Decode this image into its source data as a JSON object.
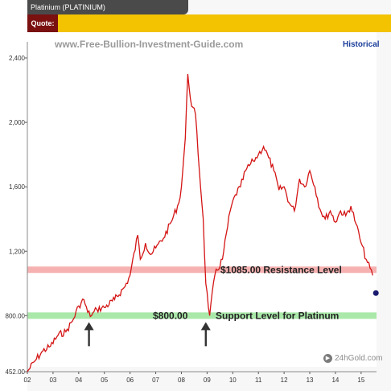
{
  "header": {
    "title": "Platinium (PLATINIUM)",
    "quote_label": "Quote:"
  },
  "watermark": "www.Free-Bullion-Investment-Guide.com",
  "historical_link": "Historical",
  "logo": "24hGold.com",
  "colors": {
    "line": "#d41414",
    "resistance": "#f4a3a3",
    "support": "#9ae49a",
    "quote_bar": "#f3c200",
    "quote_label_bg": "#7a1010"
  },
  "chart_data": {
    "type": "line",
    "title": "",
    "xlabel": "",
    "ylabel": "",
    "xlim": [
      2002,
      2015.6
    ],
    "ylim": [
      452,
      2450
    ],
    "x_ticks": [
      "02",
      "03",
      "04",
      "05",
      "06",
      "07",
      "08",
      "09",
      "10",
      "11",
      "12",
      "13",
      "14",
      "15"
    ],
    "y_ticks": [
      "452.00",
      "800.00",
      "1,200",
      "1,600",
      "2,000",
      "2,400"
    ],
    "y_tick_values": [
      452,
      800,
      1200,
      1600,
      2000,
      2400
    ],
    "grid": false,
    "series": [
      {
        "x": [
          2002.0,
          2002.3,
          2002.6,
          2002.9,
          2003.2,
          2003.5,
          2003.8,
          2004.0,
          2004.2,
          2004.35,
          2004.5,
          2004.7,
          2005.0,
          2005.4,
          2005.8,
          2006.0,
          2006.3,
          2006.4,
          2006.6,
          2006.8,
          2007.0,
          2007.3,
          2007.6,
          2007.9,
          2008.0,
          2008.15,
          2008.25,
          2008.4,
          2008.55,
          2008.7,
          2008.85,
          2008.95,
          2009.1,
          2009.3,
          2009.6,
          2009.9,
          2010.1,
          2010.3,
          2010.5,
          2010.8,
          2011.0,
          2011.2,
          2011.4,
          2011.6,
          2011.8,
          2012.0,
          2012.2,
          2012.4,
          2012.6,
          2012.8,
          2013.0,
          2013.2,
          2013.4,
          2013.6,
          2013.8,
          2014.0,
          2014.2,
          2014.4,
          2014.6,
          2014.8,
          2015.0,
          2015.2,
          2015.45
        ],
        "y": [
          452,
          520,
          580,
          610,
          680,
          700,
          780,
          860,
          900,
          820,
          800,
          840,
          850,
          900,
          980,
          1050,
          1300,
          1150,
          1250,
          1180,
          1220,
          1280,
          1380,
          1500,
          1600,
          1900,
          2300,
          2100,
          2050,
          1700,
          1400,
          1000,
          800,
          1050,
          1150,
          1450,
          1550,
          1600,
          1700,
          1760,
          1800,
          1850,
          1780,
          1700,
          1580,
          1600,
          1500,
          1450,
          1650,
          1600,
          1700,
          1600,
          1460,
          1400,
          1450,
          1380,
          1450,
          1420,
          1480,
          1370,
          1250,
          1150,
          1050
        ]
      }
    ],
    "annotations": [
      {
        "text": "$1085.00  Resistance Level",
        "y": 1085,
        "color": "#f4a3a3"
      },
      {
        "text_value": "$800.00",
        "text_label": "Support Level for Platinum",
        "y": 800,
        "color": "#9ae49a"
      }
    ],
    "arrows": [
      {
        "x": 2004.4,
        "y": 800
      },
      {
        "x": 2008.95,
        "y": 800
      }
    ]
  }
}
